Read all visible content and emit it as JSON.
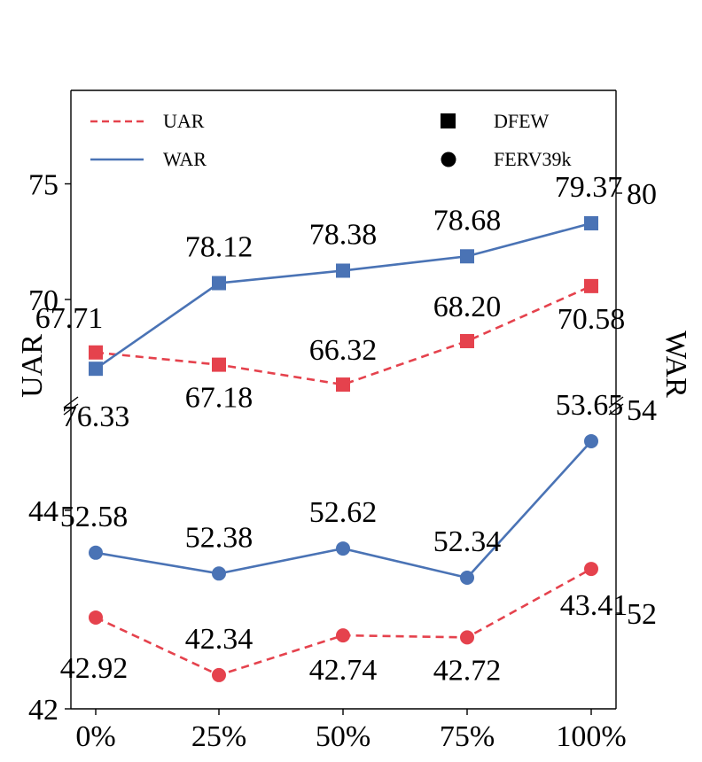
{
  "chart_data": {
    "type": "line",
    "x_categories": [
      "0%",
      "25%",
      "50%",
      "75%",
      "100%"
    ],
    "ylabel_left": "UAR",
    "ylabel_right": "WAR",
    "legend": {
      "lines": [
        {
          "label": "UAR",
          "style": "dashed",
          "color": "#E5424D"
        },
        {
          "label": "WAR",
          "style": "solid",
          "color": "#4A73B5"
        }
      ],
      "markers": [
        {
          "label": "DFEW",
          "shape": "square"
        },
        {
          "label": "FERV39k",
          "shape": "circle"
        }
      ]
    },
    "panels": [
      {
        "name": "DFEW",
        "marker": "square",
        "left_axis": {
          "ticks": [
            70,
            75
          ],
          "tick_labels": [
            "70",
            "75"
          ]
        },
        "right_axis": {
          "ticks": [
            80
          ],
          "tick_labels": [
            "80"
          ],
          "break_label": "54"
        },
        "series": [
          {
            "name": "UAR",
            "axis": "left",
            "values": [
              67.71,
              67.18,
              66.32,
              68.2,
              70.58
            ],
            "labels": [
              "67.71",
              "67.18",
              "66.32",
              "68.20",
              "70.58"
            ]
          },
          {
            "name": "WAR",
            "axis": "right",
            "values": [
              76.33,
              78.12,
              78.38,
              78.68,
              79.37
            ],
            "labels": [
              "76.33",
              "78.12",
              "78.38",
              "78.68",
              "79.37"
            ]
          }
        ]
      },
      {
        "name": "FERV39k",
        "marker": "circle",
        "left_axis": {
          "ticks": [
            42,
            44
          ],
          "tick_labels": [
            "42",
            "44"
          ]
        },
        "right_axis": {
          "ticks": [
            52
          ],
          "tick_labels": [
            "52"
          ]
        },
        "series": [
          {
            "name": "UAR",
            "axis": "left",
            "values": [
              42.92,
              42.34,
              42.74,
              42.72,
              43.41
            ],
            "labels": [
              "42.92",
              "42.34",
              "42.74",
              "42.72",
              "43.41"
            ]
          },
          {
            "name": "WAR",
            "axis": "right",
            "values": [
              52.58,
              52.38,
              52.62,
              52.34,
              53.65
            ],
            "labels": [
              "52.58",
              "52.38",
              "52.62",
              "52.34",
              "53.65"
            ]
          }
        ]
      }
    ],
    "colors": {
      "uar": "#E5424D",
      "war": "#4A73B5"
    }
  }
}
